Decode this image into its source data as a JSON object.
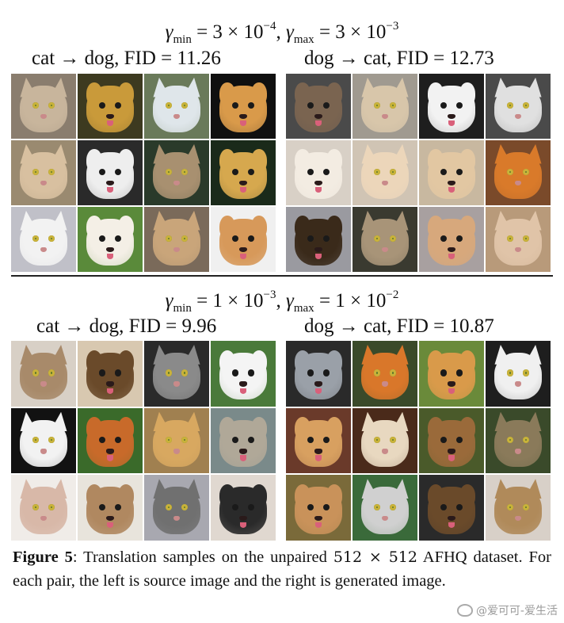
{
  "colors": {
    "text": "#111111",
    "divider": "#222222",
    "watermark": "#9a9a9a"
  },
  "sections": [
    {
      "gamma_text": {
        "gmin_sym": "γ",
        "gmin_sub": "min",
        "gmin_val": " = 3 × 10",
        "gmin_exp": "−4",
        "sep": ", ",
        "gmax_sym": "γ",
        "gmax_sub": "max",
        "gmax_val": " = 3 × 10",
        "gmax_exp": "−3"
      },
      "left_label": "cat  → dog, FID = 11.26",
      "right_label": "dog  → cat, FID = 12.73",
      "left_tiles": [
        {
          "kind": "cat",
          "c": "#c8b59c",
          "bg": "#8a7d6e"
        },
        {
          "kind": "dog",
          "c": "#c99a3a",
          "bg": "#3d3a20"
        },
        {
          "kind": "cat",
          "c": "#dfe6ea",
          "bg": "#6a7a5a"
        },
        {
          "kind": "dog",
          "c": "#d99a4a",
          "bg": "#101010"
        },
        {
          "kind": "cat",
          "c": "#d8c0a0",
          "bg": "#9a8a70"
        },
        {
          "kind": "dog",
          "c": "#eeeeee",
          "bg": "#2a2a2a"
        },
        {
          "kind": "cat",
          "c": "#a89070",
          "bg": "#2a3a2a"
        },
        {
          "kind": "dog",
          "c": "#d6a84e",
          "bg": "#1a2a1a"
        },
        {
          "kind": "cat",
          "c": "#f2f2f2",
          "bg": "#c0c0c8"
        },
        {
          "kind": "dog",
          "c": "#f4efe6",
          "bg": "#5a8a3a"
        },
        {
          "kind": "cat",
          "c": "#c9a57a",
          "bg": "#7a6a5a"
        },
        {
          "kind": "dog",
          "c": "#d7995a",
          "bg": "#f0f0f0"
        }
      ],
      "right_tiles": [
        {
          "kind": "dog",
          "c": "#7a6450",
          "bg": "#4a4a4a"
        },
        {
          "kind": "cat",
          "c": "#d8c6aa",
          "bg": "#a09a90"
        },
        {
          "kind": "dog",
          "c": "#f2f2f2",
          "bg": "#1e1e1e"
        },
        {
          "kind": "cat",
          "c": "#e0e0e0",
          "bg": "#4a4a4a"
        },
        {
          "kind": "dog",
          "c": "#f3ece2",
          "bg": "#d8d0c6"
        },
        {
          "kind": "cat",
          "c": "#ecd6ba",
          "bg": "#d0c4b4"
        },
        {
          "kind": "dog",
          "c": "#e2c7a2",
          "bg": "#c8b8a0"
        },
        {
          "kind": "cat",
          "c": "#d97a2a",
          "bg": "#7a4a2a"
        },
        {
          "kind": "dog",
          "c": "#3a2a1a",
          "bg": "#9a9aa0"
        },
        {
          "kind": "cat",
          "c": "#a89478",
          "bg": "#3a3a30"
        },
        {
          "kind": "dog",
          "c": "#d7a87c",
          "bg": "#a8a0a0"
        },
        {
          "kind": "cat",
          "c": "#e0c4a8",
          "bg": "#b89a7a"
        }
      ]
    },
    {
      "gamma_text": {
        "gmin_sym": "γ",
        "gmin_sub": "min",
        "gmin_val": " = 1 × 10",
        "gmin_exp": "−3",
        "sep": ", ",
        "gmax_sym": "γ",
        "gmax_sub": "max",
        "gmax_val": " = 1 × 10",
        "gmax_exp": "−2"
      },
      "left_label": "cat  → dog, FID = 9.96",
      "right_label": "dog  → cat, FID = 10.87",
      "left_tiles": [
        {
          "kind": "cat",
          "c": "#a88a6a",
          "bg": "#d8d0c6"
        },
        {
          "kind": "dog",
          "c": "#6a4a2a",
          "bg": "#d8c8b0"
        },
        {
          "kind": "cat",
          "c": "#8a8a8a",
          "bg": "#2a2a2a"
        },
        {
          "kind": "dog",
          "c": "#f4f4f4",
          "bg": "#4a7a3a"
        },
        {
          "kind": "cat",
          "c": "#f2f2f2",
          "bg": "#121212"
        },
        {
          "kind": "dog",
          "c": "#c86a2a",
          "bg": "#3a6a2a"
        },
        {
          "kind": "cat",
          "c": "#d8a860",
          "bg": "#a08050"
        },
        {
          "kind": "dog",
          "c": "#b0a898",
          "bg": "#7a8a8a"
        },
        {
          "kind": "cat",
          "c": "#d8b8a8",
          "bg": "#f0ece8"
        },
        {
          "kind": "dog",
          "c": "#b08860",
          "bg": "#e8e4dc"
        },
        {
          "kind": "cat",
          "c": "#707070",
          "bg": "#a8a8b0"
        },
        {
          "kind": "dog",
          "c": "#2a2a2a",
          "bg": "#e0d8d0"
        }
      ],
      "right_tiles": [
        {
          "kind": "dog",
          "c": "#9aa0a8",
          "bg": "#2a2a2a"
        },
        {
          "kind": "cat",
          "c": "#d9772a",
          "bg": "#3a4a2a"
        },
        {
          "kind": "dog",
          "c": "#d99a4a",
          "bg": "#6a8a3a"
        },
        {
          "kind": "cat",
          "c": "#f0f0f0",
          "bg": "#1e1e1e"
        },
        {
          "kind": "dog",
          "c": "#d8a060",
          "bg": "#6a3a2a"
        },
        {
          "kind": "cat",
          "c": "#e8d8c0",
          "bg": "#4a2a1a"
        },
        {
          "kind": "dog",
          "c": "#9a6a3a",
          "bg": "#4a5a2a"
        },
        {
          "kind": "cat",
          "c": "#8a7a5a",
          "bg": "#3a4a2a"
        },
        {
          "kind": "dog",
          "c": "#c9925a",
          "bg": "#7a6a3a"
        },
        {
          "kind": "cat",
          "c": "#d0d0d0",
          "bg": "#3a6a3a"
        },
        {
          "kind": "dog",
          "c": "#6a4a2a",
          "bg": "#2a2a2a"
        },
        {
          "kind": "cat",
          "c": "#b08a5a",
          "bg": "#d8d0c8"
        }
      ]
    }
  ],
  "caption": {
    "figure_label": "Figure 5",
    "text_before": ": Translation samples on the unpaired ",
    "resolution": "512 × 512",
    "text_after": " AFHQ dataset. For each pair, the left is source image and the right is generated image."
  },
  "watermark": "@爱可可-爱生活"
}
